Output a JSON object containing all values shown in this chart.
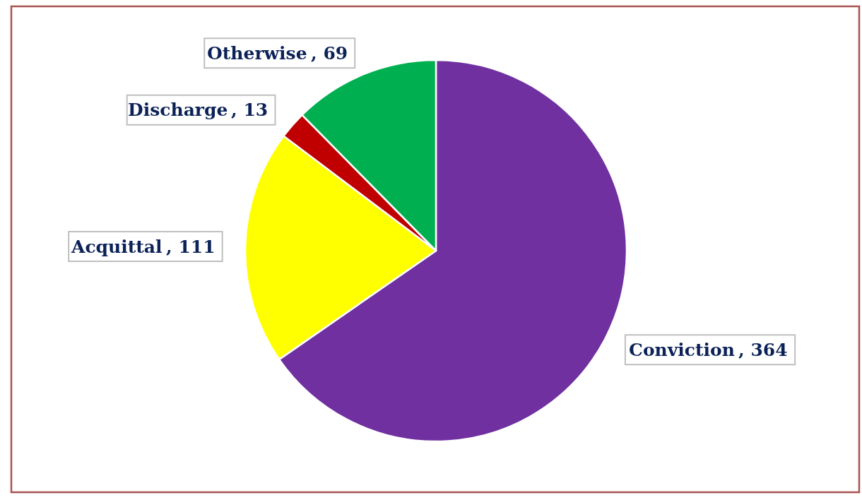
{
  "chart_data": {
    "type": "pie",
    "categories": [
      "Conviction",
      "Acquittal",
      "Discharge",
      "Otherwise"
    ],
    "values": [
      364,
      111,
      13,
      69
    ],
    "colors": [
      "#7030a0",
      "#ffff00",
      "#c00000",
      "#00b050"
    ],
    "value_labels": [
      ", 364",
      ", 111",
      ", 13",
      ", 69"
    ]
  }
}
